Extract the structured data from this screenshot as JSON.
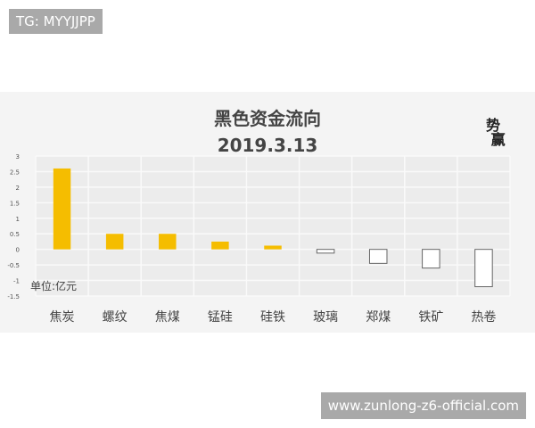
{
  "watermarks": {
    "top_left": "TG: MYYJJPP",
    "bottom_right": "www.zunlong-z6-official.com"
  },
  "logo_text": "势赢",
  "chart_data": {
    "type": "bar",
    "title": "黑色资金流向",
    "subtitle": "2019.3.13",
    "annotation": "单位:亿元",
    "categories": [
      "焦炭",
      "螺纹",
      "焦煤",
      "锰硅",
      "硅铁",
      "玻璃",
      "郑煤",
      "铁矿",
      "热卷"
    ],
    "values": [
      2.6,
      0.5,
      0.5,
      0.25,
      0.12,
      -0.12,
      -0.45,
      -0.6,
      -1.2
    ],
    "ylim": [
      -1.5,
      3
    ],
    "yticks": [
      "3",
      "2.5",
      "2",
      "1.5",
      "1",
      "0.5",
      "0",
      "-0.5",
      "-1",
      "-1.5"
    ],
    "grid": true,
    "colors": {
      "positive": "#f5bd00",
      "negative_fill": "#ffffff",
      "negative_stroke": "#666666"
    }
  }
}
